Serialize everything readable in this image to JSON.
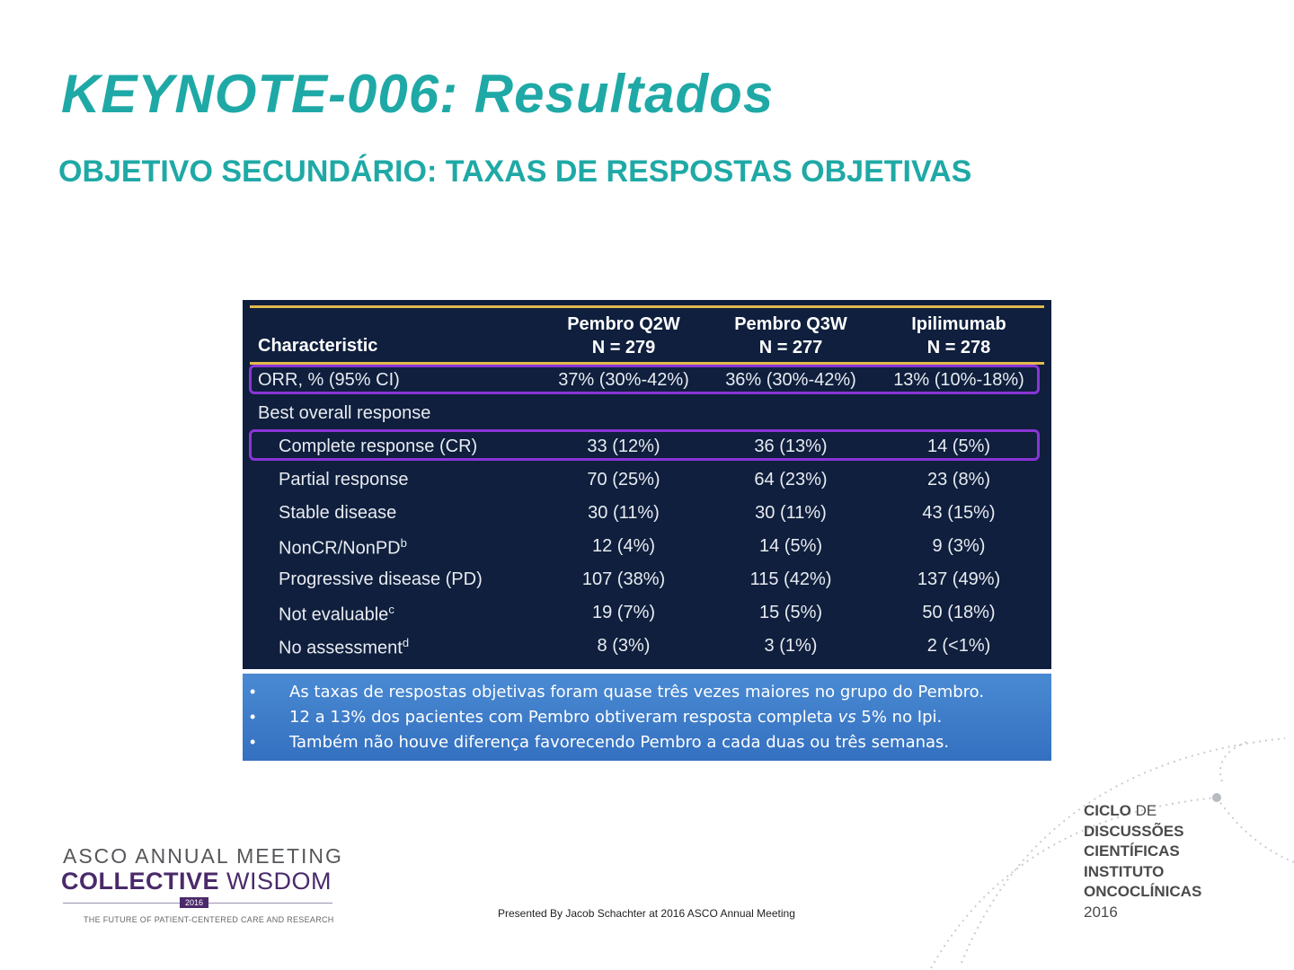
{
  "title": "KEYNOTE-006: Resultados",
  "subtitle": "OBJETIVO SECUNDÁRIO: TAXAS DE RESPOSTAS OBJETIVAS",
  "table": {
    "characteristic_header": "Characteristic",
    "columns": [
      {
        "name": "Pembro Q2W",
        "n": "N = 279"
      },
      {
        "name": "Pembro Q3W",
        "n": "N = 277"
      },
      {
        "name": "Ipilimumab",
        "n": "N = 278"
      }
    ],
    "rows": [
      {
        "label": "ORR, % (95% CI)",
        "sup": "",
        "values": [
          "37% (30%-42%)",
          "36% (30%-42%)",
          "13% (10%-18%)"
        ]
      },
      {
        "label": "Best overall response",
        "sup": "",
        "values": [
          "",
          "",
          ""
        ]
      },
      {
        "label": "Complete response (CR)",
        "sup": "",
        "values": [
          "33 (12%)",
          "36 (13%)",
          "14 (5%)"
        ]
      },
      {
        "label": "Partial response",
        "sup": "",
        "values": [
          "70 (25%)",
          "64 (23%)",
          "23 (8%)"
        ]
      },
      {
        "label": "Stable disease",
        "sup": "",
        "values": [
          "30 (11%)",
          "30 (11%)",
          "43 (15%)"
        ]
      },
      {
        "label": "NonCR/NonPD",
        "sup": "b",
        "values": [
          "12 (4%)",
          "14 (5%)",
          "9 (3%)"
        ]
      },
      {
        "label": "Progressive disease (PD)",
        "sup": "",
        "values": [
          "107 (38%)",
          "115 (42%)",
          "137 (49%)"
        ]
      },
      {
        "label": "Not evaluable",
        "sup": "c",
        "values": [
          "19 (7%)",
          "15 (5%)",
          "50 (18%)"
        ]
      },
      {
        "label": "No assessment",
        "sup": "d",
        "values": [
          "8 (3%)",
          "3 (1%)",
          "2 (<1%)"
        ]
      }
    ]
  },
  "bullets": {
    "marker": "•",
    "b1": "As taxas de respostas objetivas foram quase três vezes maiores no grupo do Pembro.",
    "b2_pre": "12 a 13% dos pacientes com Pembro obtiveram resposta completa ",
    "b2_em": "vs",
    "b2_post": " 5% no Ipi.",
    "b3": "Também não houve diferença favorecendo Pembro a cada duas ou três semanas."
  },
  "footer": "Presented By Jacob Schachter at 2016 ASCO Annual Meeting",
  "asco_logo": {
    "line1": "ASCO ANNUAL MEETING",
    "collective": "COLLECTIVE",
    "wisdom": "WISDOM",
    "year": "2016",
    "tagline": "THE FUTURE OF PATIENT-CENTERED CARE AND RESEARCH"
  },
  "ciclo_logo": {
    "l1a": "CICLO",
    "l1b": "DE",
    "l2": "DISCUSSÕES",
    "l3": "CIENTÍFICAS",
    "l4": "INSTITUTO",
    "l5": "ONCOCLÍNICAS",
    "l6": "2016"
  },
  "colors": {
    "title": "#1fa9a6",
    "table_bg": "#0f1f3d",
    "highlight": "#8a35d6",
    "gold_rule": "#e1b94d",
    "bullet_box": "#3f7fcb"
  }
}
